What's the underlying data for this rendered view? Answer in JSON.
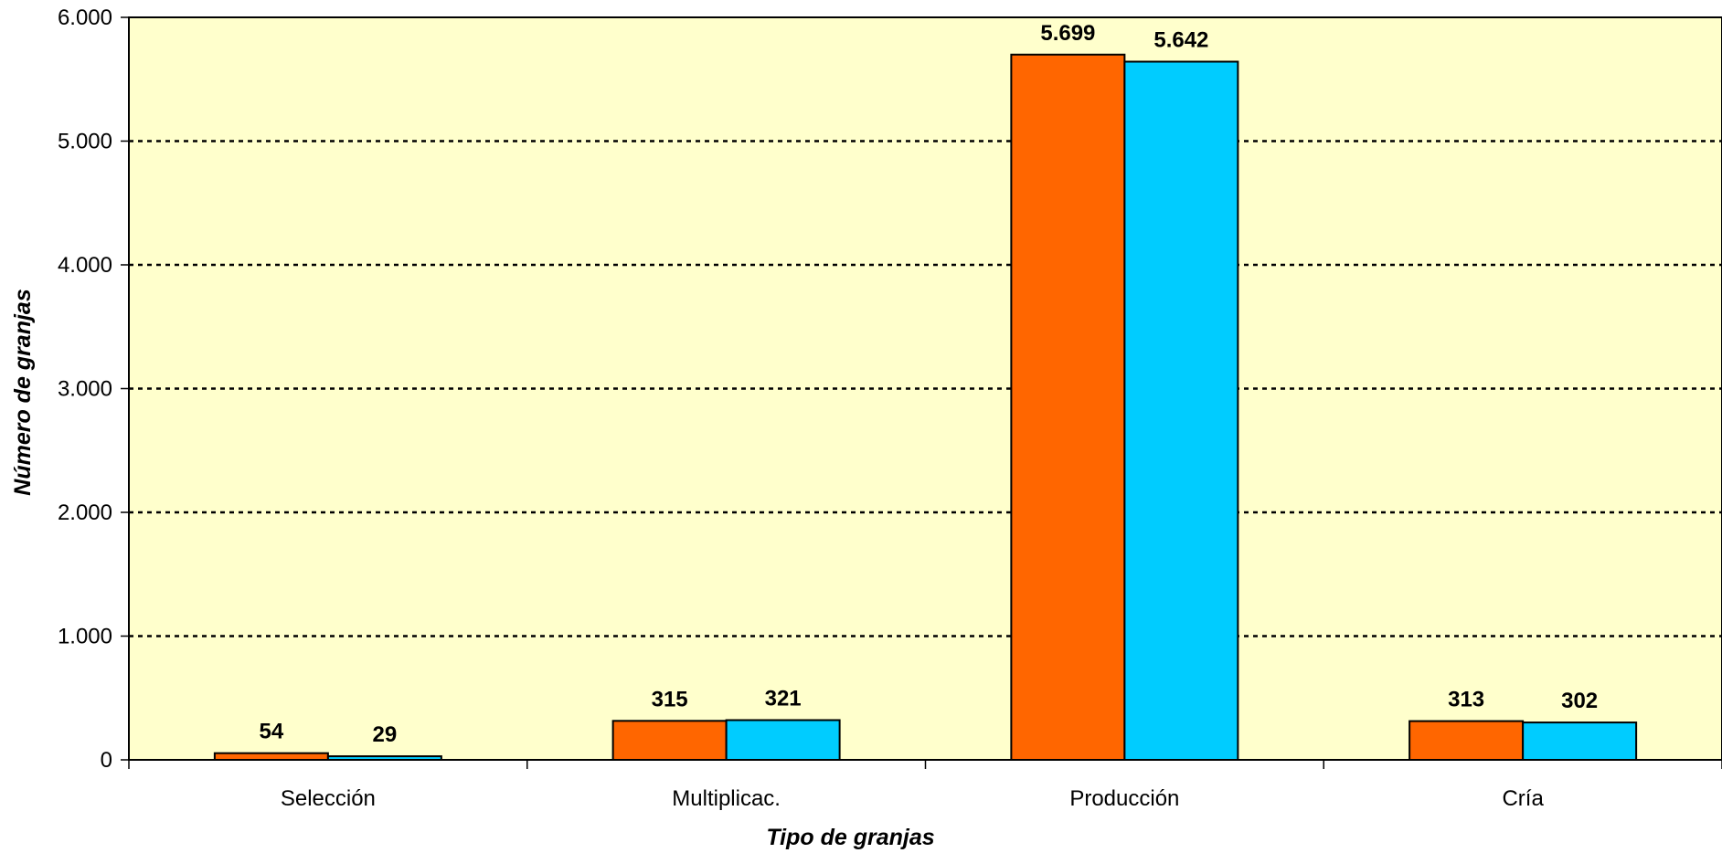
{
  "chart_data": {
    "type": "bar",
    "categories": [
      "Selección",
      "Multiplicac.",
      "Producción",
      "Cría"
    ],
    "series": [
      {
        "values": [
          54,
          315,
          5699,
          313
        ],
        "labels": [
          "54",
          "315",
          "5.699",
          "313"
        ],
        "color": "#FF6600"
      },
      {
        "values": [
          29,
          321,
          5642,
          302
        ],
        "labels": [
          "29",
          "321",
          "5.642",
          "302"
        ],
        "color": "#00CCFF"
      }
    ],
    "xlabel": "Tipo de granjas",
    "ylabel": "Número de granjas",
    "ylim": [
      0,
      6000
    ],
    "yticks": [
      0,
      1000,
      2000,
      3000,
      4000,
      5000,
      6000
    ],
    "ytick_labels": [
      "0",
      "1.000",
      "2.000",
      "3.000",
      "4.000",
      "5.000",
      "6.000"
    ],
    "grid": true,
    "grid_style": "dotted",
    "plot_background": "#FFFFCC",
    "bar_outline": "#000000"
  }
}
